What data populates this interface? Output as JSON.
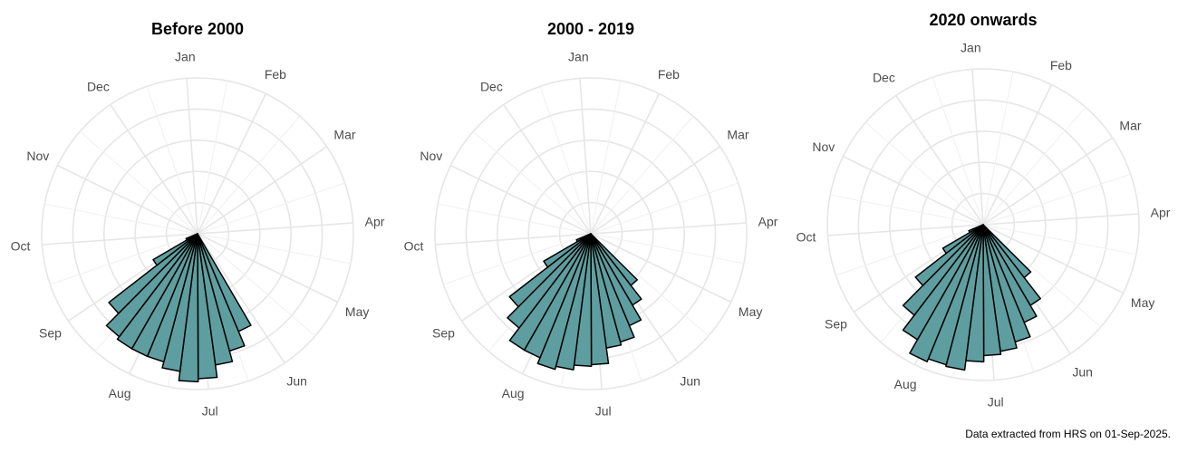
{
  "caption": "Data extracted from HRS on 01-Sep-2025.",
  "colors": {
    "bar_fill": "#5f9ea0",
    "bar_stroke": "#000000",
    "grid": "#e6e6e6",
    "label": "#4d4d4d"
  },
  "chart_data": [
    {
      "type": "polar-histogram",
      "title": "Before 2000",
      "month_labels": [
        "Jan",
        "Feb",
        "Mar",
        "Apr",
        "May",
        "Jun",
        "Jul",
        "Aug",
        "Sep",
        "Oct",
        "Nov",
        "Dec"
      ],
      "radial_grid": true,
      "bars": [
        {
          "angle_deg": 157.5,
          "value": 0.68
        },
        {
          "angle_deg": 165,
          "value": 0.78
        },
        {
          "angle_deg": 172.5,
          "value": 0.85
        },
        {
          "angle_deg": 180,
          "value": 0.93
        },
        {
          "angle_deg": 187.5,
          "value": 0.95
        },
        {
          "angle_deg": 195,
          "value": 0.89
        },
        {
          "angle_deg": 202.5,
          "value": 0.85
        },
        {
          "angle_deg": 210,
          "value": 0.85
        },
        {
          "angle_deg": 217.5,
          "value": 0.85
        },
        {
          "angle_deg": 225,
          "value": 0.83
        },
        {
          "angle_deg": 232.5,
          "value": 0.72
        },
        {
          "angle_deg": 240,
          "value": 0.33
        },
        {
          "angle_deg": 247.5,
          "value": 0.08
        }
      ]
    },
    {
      "type": "polar-histogram",
      "title": "2000 - 2019",
      "month_labels": [
        "Jan",
        "Feb",
        "Mar",
        "Apr",
        "May",
        "Jun",
        "Jul",
        "Aug",
        "Sep",
        "Oct",
        "Nov",
        "Dec"
      ],
      "radial_grid": true,
      "bars": [
        {
          "angle_deg": 142.5,
          "value": 0.42
        },
        {
          "angle_deg": 150,
          "value": 0.53
        },
        {
          "angle_deg": 157.5,
          "value": 0.64
        },
        {
          "angle_deg": 165,
          "value": 0.72
        },
        {
          "angle_deg": 172.5,
          "value": 0.74
        },
        {
          "angle_deg": 180,
          "value": 0.84
        },
        {
          "angle_deg": 187.5,
          "value": 0.85
        },
        {
          "angle_deg": 195,
          "value": 0.88
        },
        {
          "angle_deg": 202.5,
          "value": 0.9
        },
        {
          "angle_deg": 210,
          "value": 0.86
        },
        {
          "angle_deg": 217.5,
          "value": 0.86
        },
        {
          "angle_deg": 225,
          "value": 0.76
        },
        {
          "angle_deg": 232.5,
          "value": 0.66
        },
        {
          "angle_deg": 240,
          "value": 0.35
        },
        {
          "angle_deg": 247.5,
          "value": 0.1
        }
      ]
    },
    {
      "type": "polar-histogram",
      "title": "2020 onwards",
      "month_labels": [
        "Jan",
        "Feb",
        "Mar",
        "Apr",
        "May",
        "Jun",
        "Jul",
        "Aug",
        "Sep",
        "Oct",
        "Nov",
        "Dec"
      ],
      "radial_grid": true,
      "bars": [
        {
          "angle_deg": 142.5,
          "value": 0.43
        },
        {
          "angle_deg": 150,
          "value": 0.6
        },
        {
          "angle_deg": 157.5,
          "value": 0.68
        },
        {
          "angle_deg": 165,
          "value": 0.78
        },
        {
          "angle_deg": 172.5,
          "value": 0.82
        },
        {
          "angle_deg": 180,
          "value": 0.84
        },
        {
          "angle_deg": 187.5,
          "value": 0.88
        },
        {
          "angle_deg": 195,
          "value": 0.94
        },
        {
          "angle_deg": 202.5,
          "value": 0.93
        },
        {
          "angle_deg": 210,
          "value": 0.95
        },
        {
          "angle_deg": 217.5,
          "value": 0.85
        },
        {
          "angle_deg": 225,
          "value": 0.73
        },
        {
          "angle_deg": 232.5,
          "value": 0.55
        },
        {
          "angle_deg": 240,
          "value": 0.3
        },
        {
          "angle_deg": 247.5,
          "value": 0.1
        }
      ]
    }
  ]
}
